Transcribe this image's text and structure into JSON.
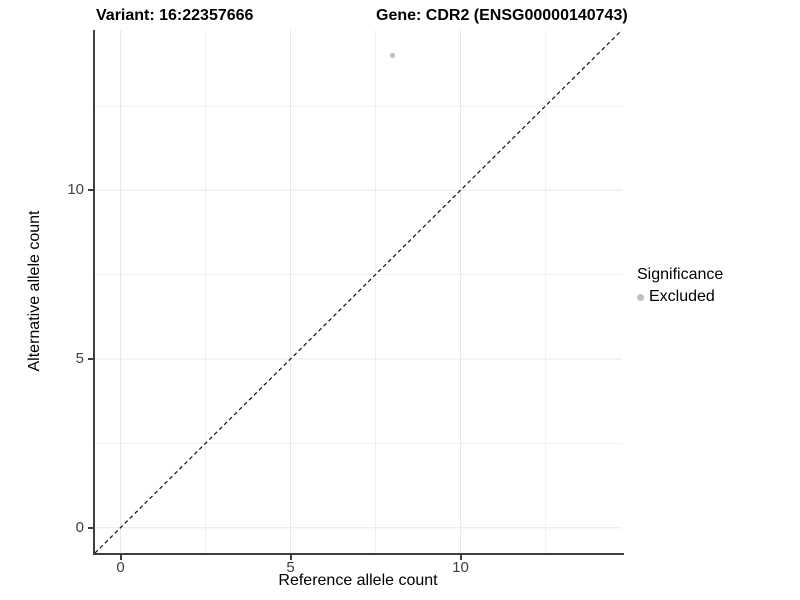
{
  "chart_data": {
    "type": "scatter",
    "title_left": "Variant: 16:22357666",
    "title_right": "Gene: CDR2 (ENSG00000140743)",
    "xlabel": "Reference allele count",
    "ylabel": "Alternative allele count",
    "xlim": [
      -0.75,
      14.75
    ],
    "ylim": [
      -0.75,
      14.75
    ],
    "x_ticks": [
      0,
      5,
      10
    ],
    "y_ticks": [
      0,
      5,
      10
    ],
    "minor_gridlines": [
      2.5,
      7.5,
      12.5
    ],
    "grid": true,
    "reference_line": {
      "type": "identity",
      "style": "dashed",
      "color": "#111111",
      "comment": "y = x dashed diagonal"
    },
    "series": [
      {
        "name": "Excluded",
        "color": "#bfbfbf",
        "points": [
          {
            "x": 8,
            "y": 14
          }
        ]
      }
    ],
    "legend": {
      "title": "Significance",
      "position": "right",
      "items": [
        {
          "label": "Excluded",
          "color": "#bfbfbf"
        }
      ]
    },
    "colors": {
      "background": "#ffffff",
      "axis_line": "#3f3f3f",
      "tick_label": "#404040",
      "major_grid": "#e8e8e8",
      "minor_grid": "#f1f1f1",
      "point": "#bfbfbf"
    }
  }
}
